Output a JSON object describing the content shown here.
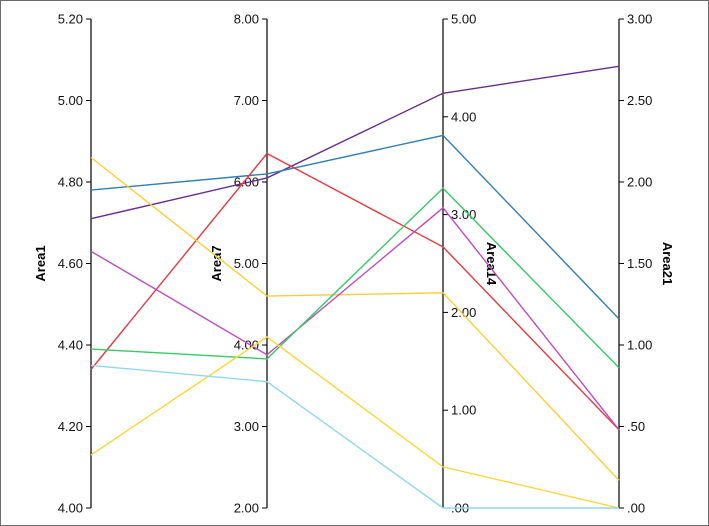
{
  "chart_data": {
    "type": "parallel_coordinates",
    "axes": [
      {
        "name": "Area1",
        "range": [
          4.0,
          5.2
        ],
        "ticks": [
          "4.00",
          "4.20",
          "4.40",
          "4.60",
          "4.80",
          "5.00",
          "5.20"
        ],
        "tick_side": "left"
      },
      {
        "name": "Area7",
        "range": [
          2.0,
          8.0
        ],
        "ticks": [
          "2.00",
          "3.00",
          "4.00",
          "5.00",
          "6.00",
          "7.00",
          "8.00"
        ],
        "tick_side": "left"
      },
      {
        "name": "Area14",
        "range": [
          0.0,
          5.0
        ],
        "ticks": [
          ".00",
          "1.00",
          "2.00",
          "3.00",
          "4.00",
          "5.00"
        ],
        "tick_side": "right"
      },
      {
        "name": "Area21",
        "range": [
          0.0,
          3.0
        ],
        "ticks": [
          ".00",
          ".50",
          "1.00",
          "1.50",
          "2.00",
          "2.50",
          "3.00"
        ],
        "tick_side": "right"
      }
    ],
    "series": [
      {
        "color": "#6a2c8e",
        "values": [
          4.71,
          6.05,
          4.24,
          2.71
        ]
      },
      {
        "color": "#2f7fb5",
        "values": [
          4.78,
          6.1,
          3.81,
          1.16
        ]
      },
      {
        "color": "#e8383d",
        "values": [
          4.34,
          6.35,
          2.67,
          0.48
        ]
      },
      {
        "color": "#ffcc33",
        "values": [
          4.86,
          4.6,
          2.2,
          0.17
        ]
      },
      {
        "color": "#c04bbf",
        "values": [
          4.63,
          3.88,
          3.07,
          0.48
        ]
      },
      {
        "color": "#33cc66",
        "values": [
          4.39,
          3.83,
          3.27,
          0.86
        ]
      },
      {
        "color": "#ffd633",
        "values": [
          4.13,
          4.1,
          0.42,
          0.0
        ]
      },
      {
        "color": "#8fd8f0",
        "values": [
          4.35,
          3.55,
          0.0,
          0.0
        ]
      }
    ],
    "grid": false
  }
}
